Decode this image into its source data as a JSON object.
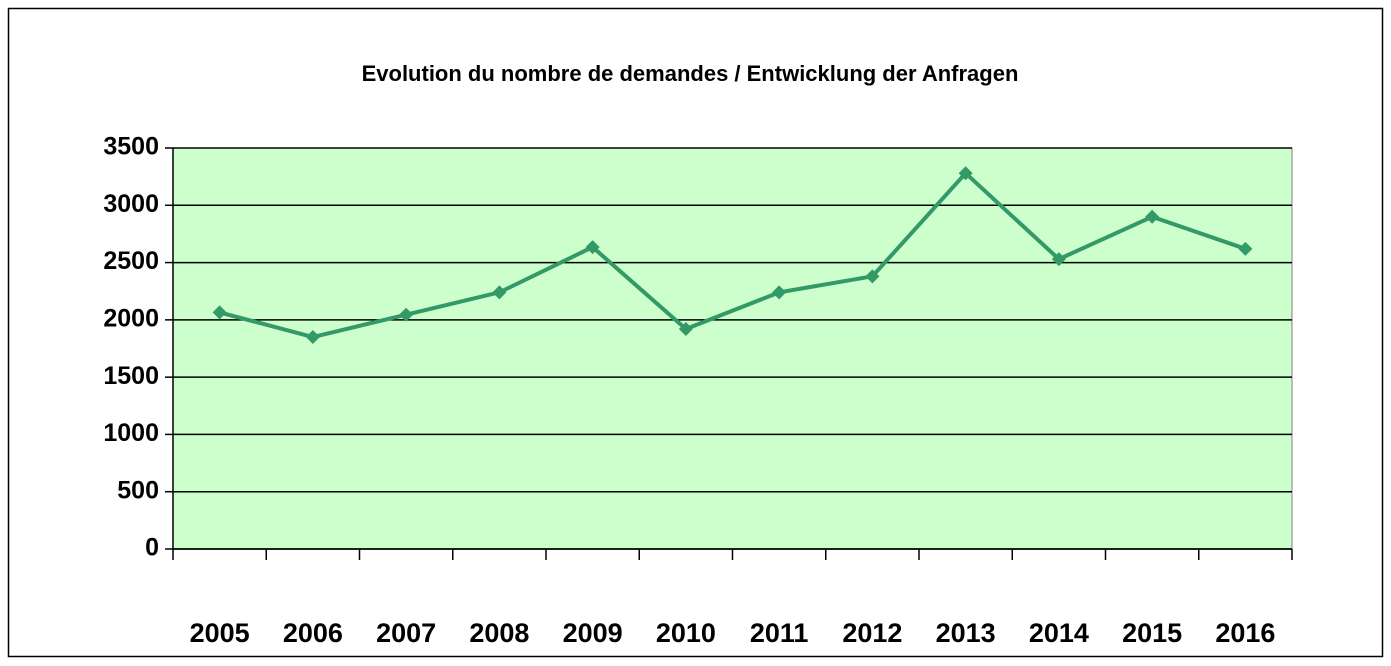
{
  "chart_data": {
    "type": "line",
    "title": "Evolution du nombre de demandes / Entwicklung der Anfragen",
    "categories": [
      "2005",
      "2006",
      "2007",
      "2008",
      "2009",
      "2010",
      "2011",
      "2012",
      "2013",
      "2014",
      "2015",
      "2016"
    ],
    "series": [
      {
        "name": "Anfragen",
        "color": "#339966",
        "values": [
          2065,
          1850,
          2045,
          2240,
          2635,
          1920,
          2240,
          2380,
          3280,
          2530,
          2900,
          2620
        ]
      }
    ],
    "ylim": [
      0,
      3500
    ],
    "yticks": [
      0,
      500,
      1000,
      1500,
      2000,
      2500,
      3000,
      3500
    ],
    "grid": true,
    "plot_background": "#ccffcc"
  }
}
